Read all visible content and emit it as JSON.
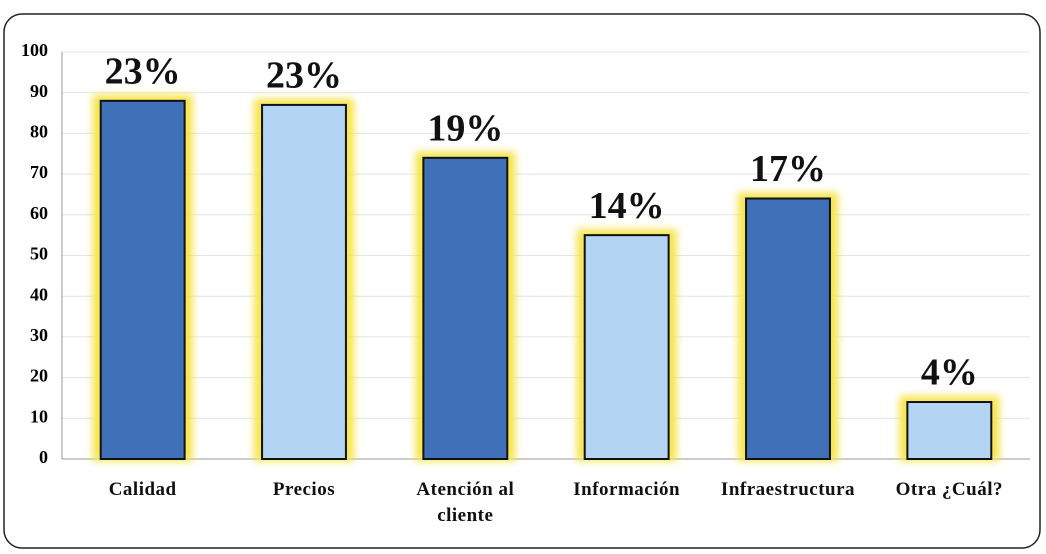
{
  "chart_data": {
    "type": "bar",
    "categories": [
      "Calidad",
      "Precios",
      "Atención al cliente",
      "Información",
      "Infraestructura",
      "Otra ¿Cuál?"
    ],
    "values": [
      88,
      87,
      74,
      55,
      64,
      14
    ],
    "annotations": [
      "23%",
      "23%",
      "19%",
      "14%",
      "17%",
      "4%"
    ],
    "colors": [
      "#3f70b8",
      "#b3d4f2",
      "#3f70b8",
      "#b3d4f2",
      "#3f70b8",
      "#b3d4f2"
    ],
    "ylim": [
      0,
      100
    ],
    "yticks": [
      0,
      10,
      20,
      30,
      40,
      50,
      60,
      70,
      80,
      90,
      100
    ],
    "grid": true
  }
}
